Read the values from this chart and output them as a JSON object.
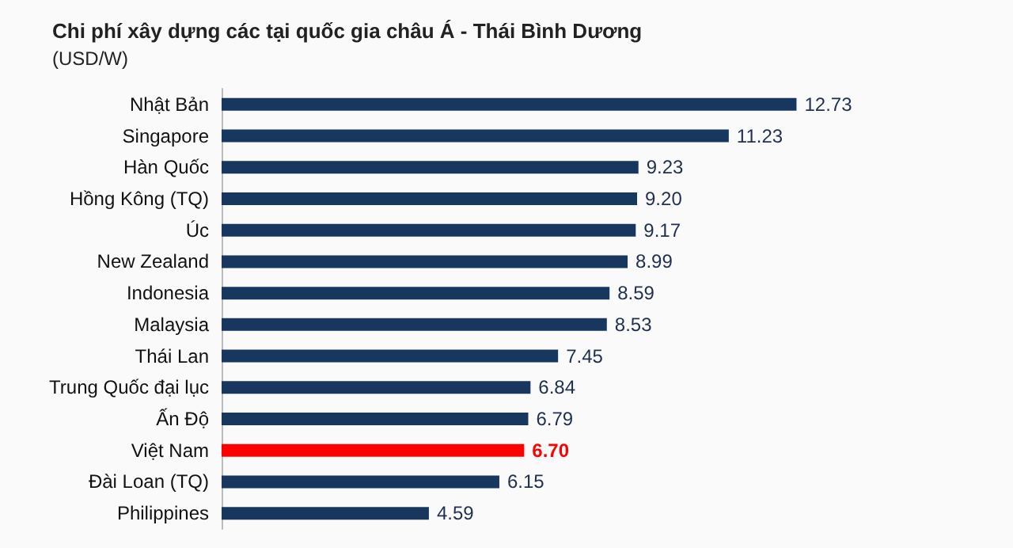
{
  "chart_data": {
    "type": "bar",
    "orientation": "horizontal",
    "title": "Chi phí xây dựng các tại quốc gia châu Á - Thái Bình Dương",
    "subtitle": "(USD/W)",
    "categories": [
      "Nhật Bản",
      "Singapore",
      "Hàn Quốc",
      "Hồng Kông (TQ)",
      "Úc",
      "New Zealand",
      "Indonesia",
      "Malaysia",
      "Thái Lan",
      "Trung Quốc đại lục",
      "Ấn Độ",
      "Việt Nam",
      "Đài Loan (TQ)",
      "Philippines"
    ],
    "values": [
      12.73,
      11.23,
      9.23,
      9.2,
      9.17,
      8.99,
      8.59,
      8.53,
      7.45,
      6.84,
      6.79,
      6.7,
      6.15,
      4.59
    ],
    "value_labels": [
      "12.73",
      "11.23",
      "9.23",
      "9.20",
      "9.17",
      "8.99",
      "8.59",
      "8.53",
      "7.45",
      "6.84",
      "6.79",
      "6.70",
      "6.15",
      "4.59"
    ],
    "colors": [
      "#17375e",
      "#17375e",
      "#17375e",
      "#17375e",
      "#17375e",
      "#17375e",
      "#17375e",
      "#17375e",
      "#17375e",
      "#17375e",
      "#17375e",
      "#ff0000",
      "#17375e",
      "#17375e"
    ]
  }
}
